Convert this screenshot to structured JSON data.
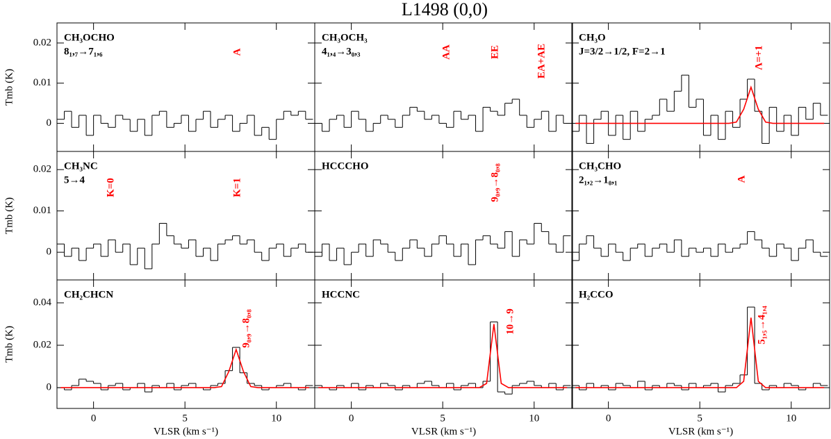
{
  "title": "L1498 (0,0)",
  "chart_data": [
    {
      "type": "step",
      "species": "CH₃OCHO",
      "transition": "8₁,₇→7₁,₆",
      "lines": [
        "A"
      ],
      "annotation_color": "#ff0000",
      "y_label": "Tmb (K)",
      "x": [
        -1.8,
        -1.4,
        -1,
        -0.6,
        -0.2,
        0.2,
        0.6,
        1,
        1.4,
        1.8,
        2.2,
        2.6,
        3,
        3.4,
        3.8,
        4.2,
        4.6,
        5,
        5.4,
        5.8,
        6.2,
        6.6,
        7,
        7.4,
        7.8,
        8.2,
        8.6,
        9,
        9.4,
        9.8,
        10.2,
        10.6,
        11,
        11.4,
        11.8
      ],
      "series": [
        {
          "color": "#000000",
          "values": [
            0.001,
            0.003,
            -0.001,
            0.002,
            -0.003,
            0.002,
            0,
            -0.001,
            0.002,
            0.001,
            -0.002,
            0.001,
            -0.003,
            0.002,
            0.003,
            -0.001,
            0,
            0.002,
            -0.002,
            0.001,
            0.003,
            -0.001,
            0.001,
            0.002,
            -0.002,
            0,
            0.002,
            -0.003,
            -0.001,
            -0.004,
            0.001,
            0.003,
            0.002,
            0.003,
            0.001
          ]
        }
      ],
      "xlim": [
        -2,
        12.1
      ],
      "xticks": [
        0,
        5,
        10
      ],
      "ylim": [
        -0.007,
        0.025
      ],
      "yticks": [
        0,
        0.01,
        0.02
      ]
    },
    {
      "type": "step",
      "species": "CH₃OCH₃",
      "transition": "4₁,₄→3₀,₃",
      "lines": [
        "AA",
        "EE",
        "EA+AE"
      ],
      "annotation_color": "#ff0000",
      "x": [
        -1.8,
        -1.4,
        -1,
        -0.6,
        -0.2,
        0.2,
        0.6,
        1,
        1.4,
        1.8,
        2.2,
        2.6,
        3,
        3.4,
        3.8,
        4.2,
        4.6,
        5,
        5.4,
        5.8,
        6.2,
        6.6,
        7,
        7.4,
        7.8,
        8.2,
        8.6,
        9,
        9.4,
        9.8,
        10.2,
        10.6,
        11,
        11.4,
        11.8
      ],
      "series": [
        {
          "color": "#000000",
          "values": [
            0,
            -0.002,
            0.001,
            0.002,
            -0.001,
            0.003,
            0.001,
            -0.002,
            0,
            0.002,
            0.001,
            -0.001,
            0.002,
            0.004,
            0.003,
            0.001,
            0.002,
            0,
            -0.001,
            0.003,
            0.001,
            0.002,
            -0.002,
            0.004,
            0.003,
            0.002,
            0.005,
            0.006,
            0.002,
            -0.001,
            0.001,
            0.003,
            -0.002,
            0.002,
            0
          ]
        }
      ],
      "xlim": [
        -2,
        12.1
      ],
      "xticks": [
        0,
        5,
        10
      ],
      "ylim": [
        -0.007,
        0.025
      ],
      "yticks": [
        0,
        0.01,
        0.02
      ]
    },
    {
      "type": "step",
      "species": "CH₃O",
      "transition": "J=3/2→1/2, F=2→1",
      "lines": [
        "Λ=+1"
      ],
      "annotation_color": "#ff0000",
      "x": [
        -1.8,
        -1.4,
        -1,
        -0.6,
        -0.2,
        0.2,
        0.6,
        1,
        1.4,
        1.8,
        2.2,
        2.6,
        3,
        3.4,
        3.8,
        4.2,
        4.6,
        5,
        5.4,
        5.8,
        6.2,
        6.6,
        7,
        7.4,
        7.8,
        8.2,
        8.6,
        9,
        9.4,
        9.8,
        10.2,
        10.6,
        11,
        11.4,
        11.8
      ],
      "series": [
        {
          "color": "#000000",
          "values": [
            -0.002,
            0.002,
            -0.005,
            0.001,
            0.003,
            -0.003,
            0.002,
            -0.004,
            0.003,
            -0.002,
            0.001,
            0.002,
            0.006,
            0.003,
            0.008,
            0.012,
            0.004,
            0.006,
            -0.003,
            0.002,
            -0.004,
            0.003,
            -0.001,
            0.006,
            0.011,
            0.003,
            -0.005,
            0.004,
            -0.002,
            0.002,
            -0.003,
            0.004,
            0.001,
            0.005,
            0.002
          ]
        },
        {
          "color": "#ff0000",
          "values": [
            0,
            0,
            0,
            0,
            0,
            0,
            0,
            0,
            0,
            0,
            0,
            0,
            0,
            0,
            0,
            0,
            0,
            0,
            0,
            0,
            0,
            0,
            0.0003,
            0.0035,
            0.009,
            0.0035,
            0.0003,
            0,
            0,
            0,
            0,
            0,
            0,
            0,
            0
          ]
        }
      ],
      "xlim": [
        -2,
        12.1
      ],
      "xticks": [
        0,
        5,
        10
      ],
      "ylim": [
        -0.007,
        0.025
      ],
      "yticks": [
        0,
        0.01,
        0.02
      ]
    },
    {
      "type": "step",
      "species": "CH₃NC",
      "transition": "5→4",
      "lines": [
        "K=0",
        "K=1"
      ],
      "annotation_color": "#ff0000",
      "y_label": "Tmb (K)",
      "x": [
        -1.8,
        -1.4,
        -1,
        -0.6,
        -0.2,
        0.2,
        0.6,
        1,
        1.4,
        1.8,
        2.2,
        2.6,
        3,
        3.4,
        3.8,
        4.2,
        4.6,
        5,
        5.4,
        5.8,
        6.2,
        6.6,
        7,
        7.4,
        7.8,
        8.2,
        8.6,
        9,
        9.4,
        9.8,
        10.2,
        10.6,
        11,
        11.4,
        11.8
      ],
      "series": [
        {
          "color": "#000000",
          "values": [
            0.002,
            -0.001,
            0.001,
            -0.002,
            0.001,
            0.002,
            -0.001,
            0.003,
            0,
            0.002,
            -0.003,
            0.001,
            -0.004,
            0.002,
            0.007,
            0.004,
            0.002,
            0.001,
            0.003,
            -0.001,
            0.001,
            -0.002,
            0.002,
            0.003,
            0.004,
            0.002,
            0.003,
            0,
            -0.002,
            0.001,
            0.002,
            -0.001,
            0.001,
            0.002,
            0
          ]
        }
      ],
      "xlim": [
        -2,
        12.1
      ],
      "xticks": [
        0,
        5,
        10
      ],
      "ylim": [
        -0.0067,
        0.0244
      ],
      "yticks": [
        0,
        0.01,
        0.02
      ]
    },
    {
      "type": "step",
      "species": "HCCCHO",
      "lines": [
        "9₀,₉→8₀,₈"
      ],
      "annotation_color": "#ff0000",
      "x": [
        -1.8,
        -1.4,
        -1,
        -0.6,
        -0.2,
        0.2,
        0.6,
        1,
        1.4,
        1.8,
        2.2,
        2.6,
        3,
        3.4,
        3.8,
        4.2,
        4.6,
        5,
        5.4,
        5.8,
        6.2,
        6.6,
        7,
        7.4,
        7.8,
        8.2,
        8.6,
        9,
        9.4,
        9.8,
        10.2,
        10.6,
        11,
        11.4,
        11.8
      ],
      "series": [
        {
          "color": "#000000",
          "values": [
            -0.001,
            0.002,
            -0.002,
            0.001,
            -0.003,
            0,
            0.002,
            -0.001,
            0.003,
            0.002,
            0,
            -0.002,
            0.001,
            0.003,
            0.001,
            -0.001,
            0.002,
            0.004,
            0.002,
            -0.001,
            0.002,
            -0.003,
            0.003,
            0.004,
            0.002,
            0.001,
            0.005,
            -0.001,
            0.003,
            0.002,
            0.007,
            0.005,
            0.002,
            0,
            0.004
          ]
        }
      ],
      "xlim": [
        -2,
        12.1
      ],
      "xticks": [
        0,
        5,
        10
      ],
      "ylim": [
        -0.0067,
        0.0244
      ],
      "yticks": [
        0,
        0.01,
        0.02
      ]
    },
    {
      "type": "step",
      "species": "CH₃CHO",
      "transition": "2₁,₂→1₀,₁",
      "lines": [
        "A"
      ],
      "annotation_color": "#ff0000",
      "x": [
        -1.8,
        -1.4,
        -1,
        -0.6,
        -0.2,
        0.2,
        0.6,
        1,
        1.4,
        1.8,
        2.2,
        2.6,
        3,
        3.4,
        3.8,
        4.2,
        4.6,
        5,
        5.4,
        5.8,
        6.2,
        6.6,
        7,
        7.4,
        7.8,
        8.2,
        8.6,
        9,
        9.4,
        9.8,
        10.2,
        10.6,
        11,
        11.4,
        11.8
      ],
      "series": [
        {
          "color": "#000000",
          "values": [
            -0.002,
            0.002,
            0.004,
            0.001,
            -0.001,
            0.002,
            0,
            -0.002,
            0.001,
            0.002,
            -0.001,
            0.001,
            0.002,
            0,
            0.003,
            -0.001,
            0.001,
            0,
            0.001,
            -0.001,
            0.002,
            0,
            0.001,
            0.002,
            0.005,
            0.003,
            0.001,
            -0.001,
            0.002,
            0.001,
            -0.002,
            0.001,
            0.003,
            0,
            -0.001
          ]
        }
      ],
      "xlim": [
        -2,
        12.1
      ],
      "xticks": [
        0,
        5,
        10
      ],
      "ylim": [
        -0.0067,
        0.0244
      ],
      "yticks": [
        0,
        0.01,
        0.02
      ]
    },
    {
      "type": "step",
      "species": "CH₂CHCN",
      "lines": [
        "9₀,₉→8₀,₈"
      ],
      "annotation_color": "#ff0000",
      "y_label": "Tmb (K)",
      "x_label": "VLSR (km s⁻¹)",
      "x": [
        -1.8,
        -1.4,
        -1,
        -0.6,
        -0.2,
        0.2,
        0.6,
        1,
        1.4,
        1.8,
        2.2,
        2.6,
        3,
        3.4,
        3.8,
        4.2,
        4.6,
        5,
        5.4,
        5.8,
        6.2,
        6.6,
        7,
        7.4,
        7.8,
        8.2,
        8.6,
        9,
        9.4,
        9.8,
        10.2,
        10.6,
        11,
        11.4,
        11.8
      ],
      "series": [
        {
          "color": "#000000",
          "values": [
            0,
            -0.001,
            0.001,
            0.004,
            0.003,
            0.002,
            -0.001,
            0.001,
            0.002,
            -0.001,
            0,
            0.002,
            -0.002,
            0.001,
            0,
            0.002,
            -0.001,
            0.001,
            0.002,
            0,
            -0.001,
            0.001,
            0.002,
            0.008,
            0.019,
            0.007,
            0.002,
            0.001,
            -0.001,
            0,
            0.001,
            0.002,
            0,
            -0.001,
            0.001
          ]
        },
        {
          "color": "#ff0000",
          "values": [
            0,
            0,
            0,
            0,
            0,
            0,
            0,
            0,
            0,
            0,
            0,
            0,
            0,
            0,
            0,
            0,
            0,
            0,
            0,
            0,
            0,
            0,
            0.0005,
            0.0076,
            0.018,
            0.0076,
            0.0005,
            0,
            0,
            0,
            0,
            0,
            0,
            0,
            0
          ]
        }
      ],
      "xlim": [
        -2,
        12.1
      ],
      "xticks": [
        0,
        5,
        10
      ],
      "ylim": [
        -0.0098,
        0.0508
      ],
      "yticks": [
        0,
        0.02,
        0.04
      ]
    },
    {
      "type": "step",
      "species": "HCCNC",
      "lines": [
        "10→9"
      ],
      "annotation_color": "#ff0000",
      "x_label": "VLSR (km s⁻¹)",
      "x": [
        -1.8,
        -1.4,
        -1,
        -0.6,
        -0.2,
        0.2,
        0.6,
        1,
        1.4,
        1.8,
        2.2,
        2.6,
        3,
        3.4,
        3.8,
        4.2,
        4.6,
        5,
        5.4,
        5.8,
        6.2,
        6.6,
        7,
        7.4,
        7.8,
        8.2,
        8.6,
        9,
        9.4,
        9.8,
        10.2,
        10.6,
        11,
        11.4,
        11.8
      ],
      "series": [
        {
          "color": "#000000",
          "values": [
            0.001,
            0,
            -0.001,
            0.001,
            0,
            0.002,
            -0.001,
            0.001,
            0,
            0.002,
            0.001,
            -0.001,
            0.001,
            0,
            0.002,
            0.003,
            0.001,
            0,
            0.002,
            -0.001,
            0.001,
            0.002,
            0,
            0.003,
            0.031,
            -0.002,
            -0.003,
            0.001,
            0.002,
            0.003,
            0.001,
            0,
            0.002,
            -0.001,
            0.001
          ]
        },
        {
          "color": "#ff0000",
          "values": [
            0,
            0,
            0,
            0,
            0,
            0,
            0,
            0,
            0,
            0,
            0,
            0,
            0,
            0,
            0,
            0,
            0,
            0,
            0,
            0,
            0,
            0,
            0,
            0.002,
            0.03,
            0.002,
            0,
            0,
            0,
            0,
            0,
            0,
            0,
            0,
            0
          ]
        }
      ],
      "xlim": [
        -2,
        12.1
      ],
      "xticks": [
        0,
        5,
        10
      ],
      "ylim": [
        -0.0098,
        0.0508
      ],
      "yticks": [
        0,
        0.02,
        0.04
      ]
    },
    {
      "type": "step",
      "species": "H₂CCO",
      "lines": [
        "5₁,₅→4₁,₄"
      ],
      "annotation_color": "#ff0000",
      "x_label": "VLSR (km s⁻¹)",
      "x": [
        -1.8,
        -1.4,
        -1,
        -0.6,
        -0.2,
        0.2,
        0.6,
        1,
        1.4,
        1.8,
        2.2,
        2.6,
        3,
        3.4,
        3.8,
        4.2,
        4.6,
        5,
        5.4,
        5.8,
        6.2,
        6.6,
        7,
        7.4,
        7.8,
        8.2,
        8.6,
        9,
        9.4,
        9.8,
        10.2,
        10.6,
        11,
        11.4,
        11.8
      ],
      "series": [
        {
          "color": "#000000",
          "values": [
            0.001,
            -0.001,
            0.002,
            0,
            0.001,
            -0.001,
            0.002,
            0.001,
            0,
            0.003,
            -0.001,
            0.001,
            0,
            0.002,
            0.001,
            -0.001,
            0.002,
            0,
            0.001,
            0.002,
            -0.002,
            0.001,
            0.002,
            0.006,
            0.038,
            0.002,
            -0.001,
            0.001,
            0,
            0.002,
            0.001,
            -0.001,
            0,
            0.002,
            0.001
          ]
        },
        {
          "color": "#ff0000",
          "values": [
            0,
            0,
            0,
            0,
            0,
            0,
            0,
            0,
            0,
            0,
            0,
            0,
            0,
            0,
            0,
            0,
            0,
            0,
            0,
            0,
            0,
            0,
            0,
            0.003,
            0.033,
            0.003,
            0,
            0,
            0,
            0,
            0,
            0,
            0,
            0,
            0
          ]
        }
      ],
      "xlim": [
        -2,
        12.1
      ],
      "xticks": [
        0,
        5,
        10
      ],
      "ylim": [
        -0.0098,
        0.0508
      ],
      "yticks": [
        0,
        0.02,
        0.04
      ]
    }
  ]
}
